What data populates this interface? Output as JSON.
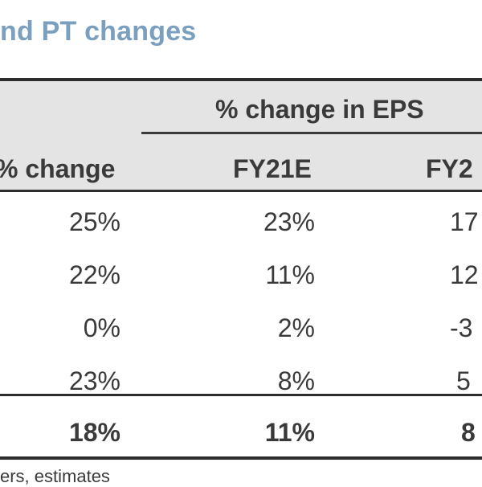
{
  "title": "nd PT changes",
  "table": {
    "group_header": "% change in EPS",
    "columns": [
      "% change",
      "FY21E",
      "FY2"
    ],
    "rows": [
      [
        "25%",
        "23%",
        "17"
      ],
      [
        "22%",
        "11%",
        "12"
      ],
      [
        "0%",
        "2%",
        "-3"
      ],
      [
        "23%",
        "8%",
        "5"
      ]
    ],
    "total": [
      "18%",
      "11%",
      "8"
    ]
  },
  "footnote": "ers, estimates"
}
